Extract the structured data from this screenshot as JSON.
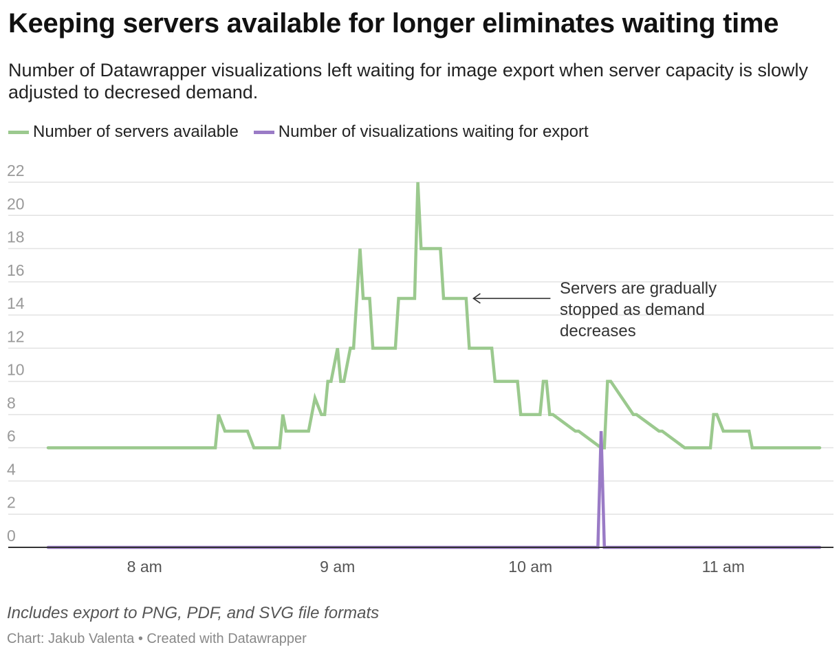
{
  "title": "Keeping servers available for longer eliminates waiting time",
  "subtitle": "Number of Datawrapper visualizations left waiting for image export when server capacity is slowly adjusted to decresed demand.",
  "note": "Includes export to PNG, PDF, and SVG file formats",
  "credit": "Chart: Jakub Valenta • Created with Datawrapper",
  "colors": {
    "servers": "#9bc98e",
    "waiting": "#9a7bc6",
    "grid": "#e2e2e2",
    "baseline": "#333333"
  },
  "chart_data": {
    "type": "line",
    "ylim": [
      0,
      22
    ],
    "y_ticks": [
      "22",
      "20",
      "18",
      "16",
      "14",
      "12",
      "10",
      "8",
      "6",
      "4",
      "2",
      "0"
    ],
    "xlim": [
      "7:30",
      "11:30"
    ],
    "x_ticks": [
      "8 am",
      "9 am",
      "10 am",
      "11 am"
    ],
    "x_tick_times": [
      "8:00",
      "9:00",
      "10:00",
      "11:00"
    ],
    "grid": true,
    "legend_position": "top-left",
    "series": [
      {
        "name": "Number of servers available",
        "x": [
          "7:30",
          "8:22",
          "8:23",
          "8:25",
          "8:32",
          "8:34",
          "8:42",
          "8:43",
          "8:44",
          "8:51",
          "8:53",
          "8:55",
          "8:56",
          "8:57",
          "8:58",
          "9:00",
          "9:01",
          "9:02",
          "9:04",
          "9:05",
          "9:07",
          "9:08",
          "9:10",
          "9:11",
          "9:18",
          "9:19",
          "9:24",
          "9:25",
          "9:26",
          "9:32",
          "9:33",
          "9:40",
          "9:41",
          "9:48",
          "9:49",
          "9:56",
          "9:57",
          "10:03",
          "10:04",
          "10:05",
          "10:06",
          "10:07",
          "10:14",
          "10:15",
          "10:22",
          "10:23",
          "10:24",
          "10:25",
          "10:32",
          "10:33",
          "10:40",
          "10:41",
          "10:48",
          "10:49",
          "10:56",
          "10:57",
          "10:58",
          "11:00",
          "11:08",
          "11:09",
          "11:30"
        ],
        "y": [
          6,
          6,
          8,
          7,
          7,
          6,
          6,
          8,
          7,
          7,
          9,
          8,
          8,
          10,
          10,
          12,
          10,
          10,
          12,
          12,
          18,
          15,
          15,
          12,
          12,
          15,
          15,
          22,
          18,
          18,
          15,
          15,
          12,
          12,
          10,
          10,
          8,
          8,
          10,
          10,
          8,
          8,
          7,
          7,
          6,
          6,
          10,
          10,
          8,
          8,
          7,
          7,
          6,
          6,
          6,
          8,
          8,
          7,
          7,
          6,
          6
        ]
      },
      {
        "name": "Number of visualizations waiting for export",
        "x": [
          "7:30",
          "10:21",
          "10:22",
          "10:23",
          "11:30"
        ],
        "y": [
          0,
          0,
          7,
          0,
          0
        ]
      }
    ],
    "annotations": [
      {
        "text": "Servers are gradually stopped as demand decreases",
        "lines": [
          "Servers are gradually",
          "stopped as demand",
          "decreases"
        ],
        "x": "9:41",
        "y": 15
      }
    ]
  }
}
